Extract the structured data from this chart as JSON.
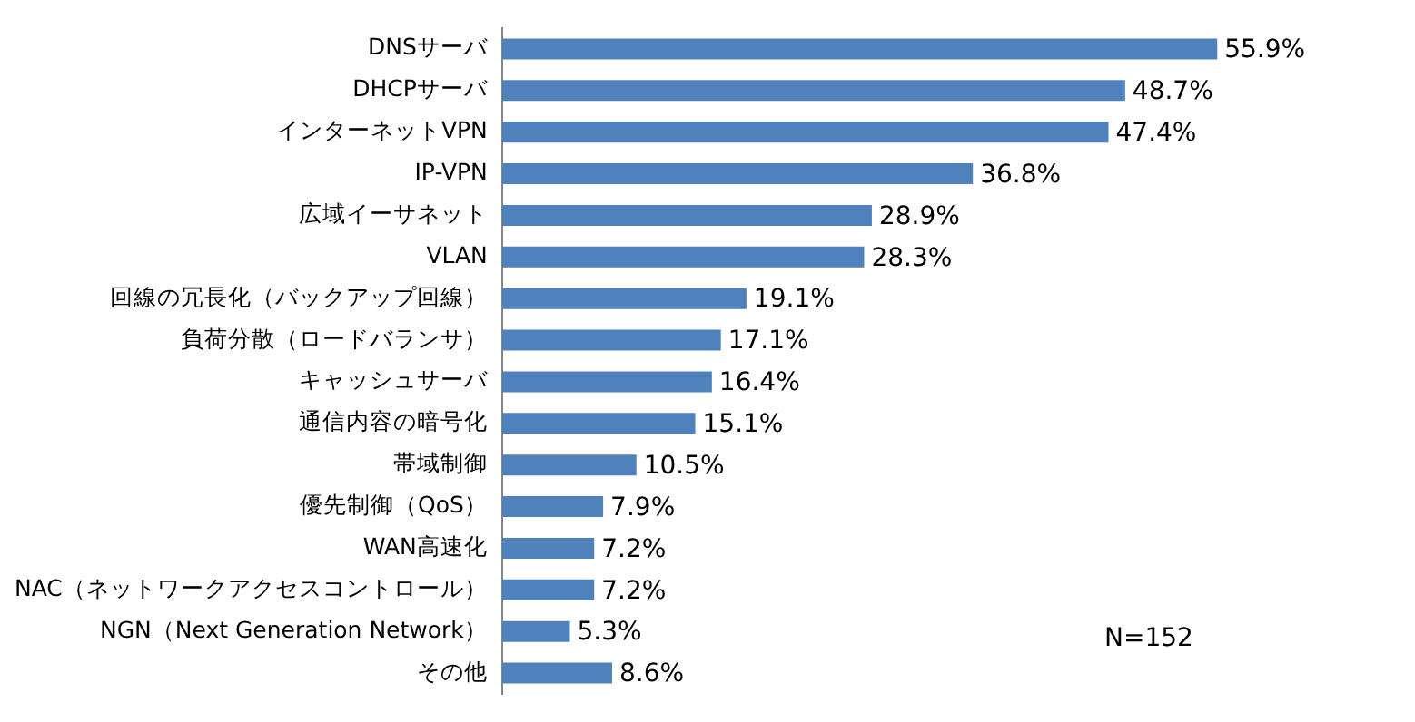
{
  "chart_data": {
    "type": "bar",
    "orientation": "horizontal",
    "categories": [
      "DNSサーバ",
      "DHCPサーバ",
      "インターネットVPN",
      "IP-VPN",
      "広域イーサネット",
      "VLAN",
      "回線の冗長化（バックアップ回線）",
      "負荷分散（ロードバランサ）",
      "キャッシュサーバ",
      "通信内容の暗号化",
      "帯域制御",
      "優先制御（QoS）",
      "WAN高速化",
      "NAC（ネットワークアクセスコントロール）",
      "NGN（Next Generation Network）",
      "その他"
    ],
    "values": [
      55.9,
      48.7,
      47.4,
      36.8,
      28.9,
      28.3,
      19.1,
      17.1,
      16.4,
      15.1,
      10.5,
      7.9,
      7.2,
      7.2,
      5.3,
      8.6
    ],
    "value_labels": [
      "55.9%",
      "48.7%",
      "47.4%",
      "36.8%",
      "28.9%",
      "28.3%",
      "19.1%",
      "17.1%",
      "16.4%",
      "15.1%",
      "10.5%",
      "7.9%",
      "7.2%",
      "7.2%",
      "5.3%",
      "8.6%"
    ],
    "color": "#4f81bd",
    "annotations": [
      "N=152"
    ]
  }
}
